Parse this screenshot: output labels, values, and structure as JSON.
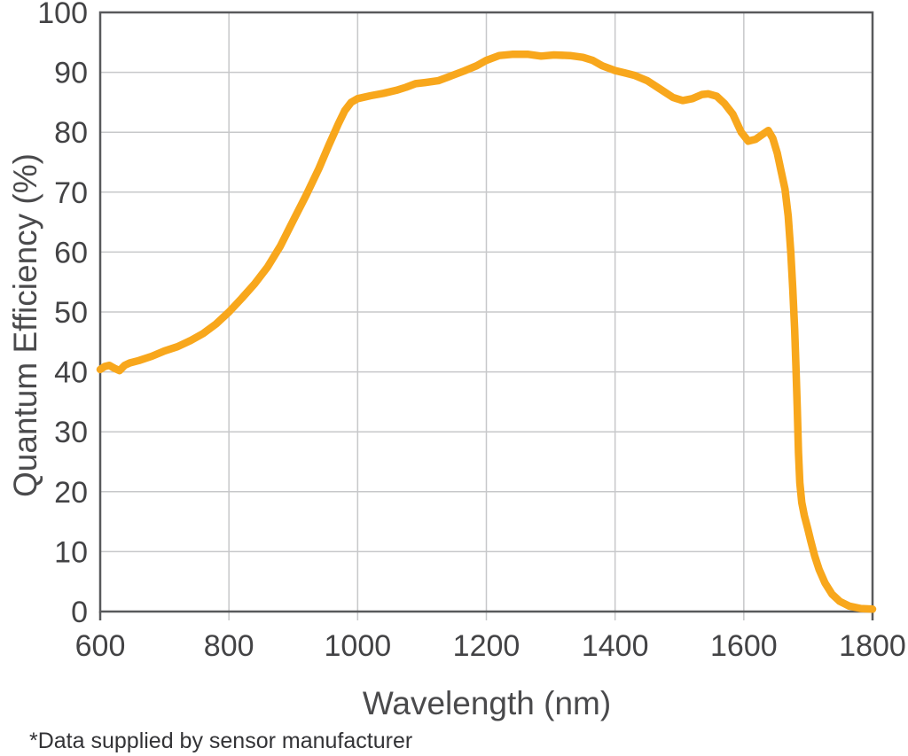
{
  "chart_data": {
    "type": "line",
    "title": "",
    "xlabel": "Wavelength (nm)",
    "ylabel": "Quantum Efficiency (%)",
    "xlim": [
      600,
      1800
    ],
    "ylim": [
      0,
      100
    ],
    "x_ticks": [
      600,
      800,
      1000,
      1200,
      1400,
      1600,
      1800
    ],
    "y_ticks": [
      0,
      10,
      20,
      30,
      40,
      50,
      60,
      70,
      80,
      90,
      100
    ],
    "grid": true,
    "legend_position": "none",
    "series": [
      {
        "name": "quantum-efficiency",
        "color": "#F8A71C",
        "points": [
          [
            600,
            40.4
          ],
          [
            607,
            40.9
          ],
          [
            614,
            41.1
          ],
          [
            622,
            40.6
          ],
          [
            630,
            40.2
          ],
          [
            638,
            41.1
          ],
          [
            646,
            41.5
          ],
          [
            660,
            41.9
          ],
          [
            680,
            42.6
          ],
          [
            700,
            43.5
          ],
          [
            720,
            44.2
          ],
          [
            740,
            45.2
          ],
          [
            760,
            46.4
          ],
          [
            780,
            48.0
          ],
          [
            800,
            50.0
          ],
          [
            820,
            52.3
          ],
          [
            840,
            54.7
          ],
          [
            860,
            57.5
          ],
          [
            880,
            61.0
          ],
          [
            900,
            65.3
          ],
          [
            920,
            69.5
          ],
          [
            940,
            74.0
          ],
          [
            955,
            77.8
          ],
          [
            970,
            81.4
          ],
          [
            980,
            83.6
          ],
          [
            990,
            85.0
          ],
          [
            1000,
            85.6
          ],
          [
            1020,
            86.1
          ],
          [
            1040,
            86.5
          ],
          [
            1060,
            87.0
          ],
          [
            1075,
            87.5
          ],
          [
            1090,
            88.1
          ],
          [
            1105,
            88.3
          ],
          [
            1125,
            88.6
          ],
          [
            1145,
            89.4
          ],
          [
            1165,
            90.2
          ],
          [
            1185,
            91.1
          ],
          [
            1200,
            92.0
          ],
          [
            1220,
            92.8
          ],
          [
            1240,
            93.0
          ],
          [
            1265,
            93.0
          ],
          [
            1285,
            92.7
          ],
          [
            1305,
            92.9
          ],
          [
            1330,
            92.8
          ],
          [
            1350,
            92.5
          ],
          [
            1365,
            92.0
          ],
          [
            1380,
            91.1
          ],
          [
            1400,
            90.3
          ],
          [
            1415,
            89.9
          ],
          [
            1430,
            89.5
          ],
          [
            1450,
            88.6
          ],
          [
            1470,
            87.2
          ],
          [
            1490,
            85.8
          ],
          [
            1505,
            85.3
          ],
          [
            1520,
            85.6
          ],
          [
            1535,
            86.3
          ],
          [
            1545,
            86.4
          ],
          [
            1558,
            86.0
          ],
          [
            1570,
            84.8
          ],
          [
            1583,
            83.0
          ],
          [
            1596,
            80.0
          ],
          [
            1607,
            78.5
          ],
          [
            1618,
            78.8
          ],
          [
            1630,
            79.7
          ],
          [
            1638,
            80.3
          ],
          [
            1645,
            79.0
          ],
          [
            1652,
            76.5
          ],
          [
            1658,
            73.5
          ],
          [
            1664,
            70.5
          ],
          [
            1669,
            66.0
          ],
          [
            1673,
            60.0
          ],
          [
            1676,
            54.0
          ],
          [
            1679,
            47.0
          ],
          [
            1681,
            41.0
          ],
          [
            1683,
            34.0
          ],
          [
            1685,
            26.5
          ],
          [
            1687,
            21.5
          ],
          [
            1690,
            18.2
          ],
          [
            1694,
            16.0
          ],
          [
            1699,
            14.0
          ],
          [
            1704,
            11.8
          ],
          [
            1710,
            9.3
          ],
          [
            1717,
            7.0
          ],
          [
            1726,
            4.8
          ],
          [
            1737,
            2.9
          ],
          [
            1749,
            1.7
          ],
          [
            1764,
            0.9
          ],
          [
            1782,
            0.5
          ],
          [
            1800,
            0.4
          ]
        ]
      }
    ]
  },
  "footnote": "*Data supplied by sensor manufacturer",
  "colors": {
    "curve": "#F8A71C",
    "frame": "#58595B",
    "gridline": "#C7C8CA",
    "tick_text": "#434345",
    "axis_title_text": "#4A4A4C",
    "footnote_text": "#333336"
  }
}
